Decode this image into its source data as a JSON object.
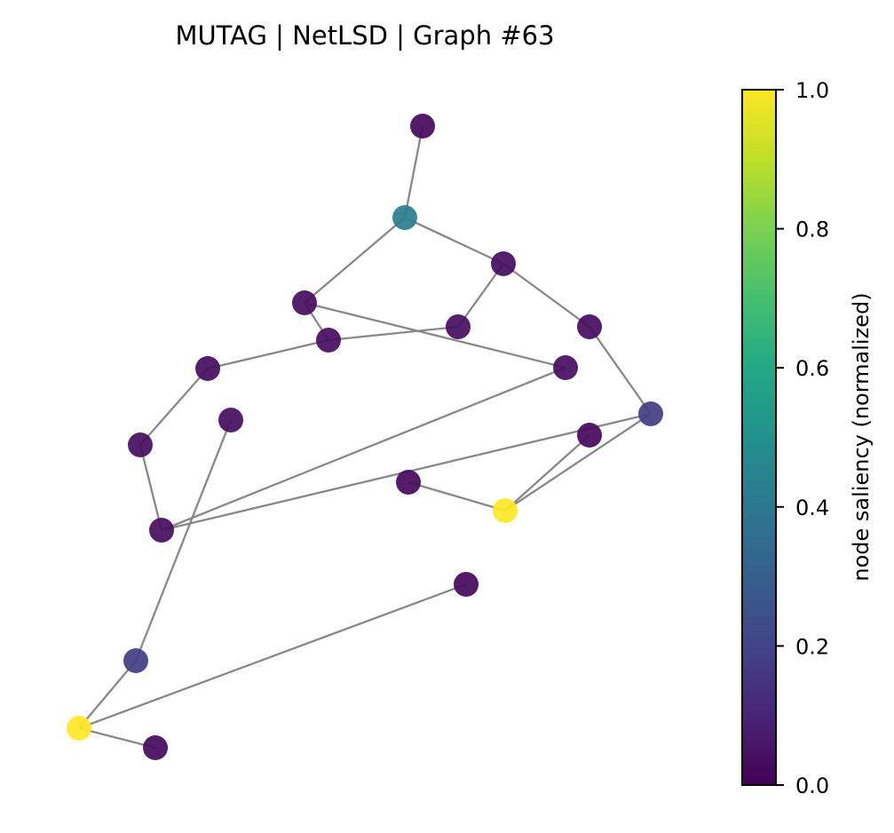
{
  "title": "MUTAG | NetLSD | Graph #63",
  "colorbar": {
    "label": "node saliency (normalized)",
    "ticks": [
      "0.0",
      "0.2",
      "0.4",
      "0.6",
      "0.8",
      "1.0"
    ],
    "colormap": "viridis"
  },
  "colors": {
    "edge": "#888888",
    "background": "#ffffff"
  },
  "chart_data": {
    "type": "graph",
    "nodes": [
      {
        "id": 0,
        "saliency": 0.02
      },
      {
        "id": 1,
        "saliency": 0.42
      },
      {
        "id": 2,
        "saliency": 0.03
      },
      {
        "id": 3,
        "saliency": 0.03
      },
      {
        "id": 4,
        "saliency": 0.03
      },
      {
        "id": 5,
        "saliency": 0.03
      },
      {
        "id": 6,
        "saliency": 0.03
      },
      {
        "id": 7,
        "saliency": 0.03
      },
      {
        "id": 8,
        "saliency": 0.03
      },
      {
        "id": 9,
        "saliency": 0.03
      },
      {
        "id": 10,
        "saliency": 0.03
      },
      {
        "id": 11,
        "saliency": 0.03
      },
      {
        "id": 12,
        "saliency": 0.18
      },
      {
        "id": 13,
        "saliency": 0.02
      },
      {
        "id": 14,
        "saliency": 0.18
      },
      {
        "id": 15,
        "saliency": 1.0
      },
      {
        "id": 16,
        "saliency": 0.02
      },
      {
        "id": 17,
        "saliency": 1.0
      },
      {
        "id": 18,
        "saliency": 0.02
      },
      {
        "id": 19,
        "saliency": 0.02
      }
    ],
    "edges": [
      [
        0,
        1
      ],
      [
        1,
        2
      ],
      [
        1,
        3
      ],
      [
        2,
        4
      ],
      [
        2,
        5
      ],
      [
        4,
        6
      ],
      [
        5,
        12
      ],
      [
        3,
        6
      ],
      [
        3,
        11
      ],
      [
        6,
        7
      ],
      [
        7,
        8
      ],
      [
        8,
        9
      ],
      [
        11,
        9
      ],
      [
        9,
        12
      ],
      [
        12,
        15
      ],
      [
        15,
        13
      ],
      [
        15,
        16
      ],
      [
        10,
        14
      ],
      [
        14,
        17
      ],
      [
        17,
        18
      ],
      [
        17,
        19
      ]
    ],
    "colorbar_range": [
      0,
      1
    ]
  }
}
